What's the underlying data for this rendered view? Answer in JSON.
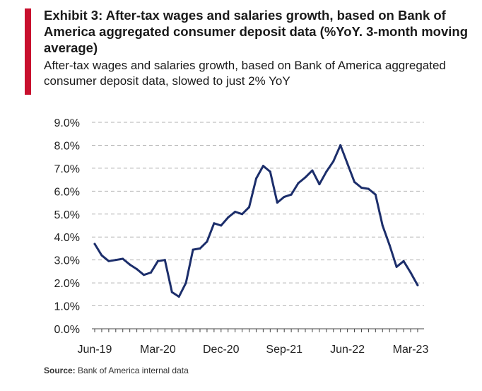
{
  "header": {
    "title": "Exhibit 3: After-tax wages and salaries growth, based on Bank of America aggregated consumer deposit data (%YoY. 3-month moving average)",
    "subtitle": "After-tax wages and salaries growth, based on Bank of America aggregated consumer deposit data, slowed to just 2% YoY"
  },
  "source": {
    "label": "Source:",
    "text": "Bank of America internal data"
  },
  "colors": {
    "accent": "#c8102e",
    "line": "#1c2e6b",
    "grid": "#b3b3b3"
  },
  "chart_data": {
    "type": "line",
    "title": "",
    "xlabel": "",
    "ylabel": "",
    "ylim": [
      0,
      9
    ],
    "grid": "horizontal-dashed",
    "legend": "none",
    "y_ticks": [
      "0.0%",
      "1.0%",
      "2.0%",
      "3.0%",
      "4.0%",
      "5.0%",
      "6.0%",
      "7.0%",
      "8.0%",
      "9.0%"
    ],
    "x_ticks": [
      {
        "label": "Jun-19",
        "x": "2019-06"
      },
      {
        "label": "Mar-20",
        "x": "2020-03"
      },
      {
        "label": "Dec-20",
        "x": "2020-12"
      },
      {
        "label": "Sep-21",
        "x": "2021-09"
      },
      {
        "label": "Jun-22",
        "x": "2022-06"
      },
      {
        "label": "Mar-23",
        "x": "2023-03"
      }
    ],
    "series": [
      {
        "x": [
          "2019-06",
          "2019-07",
          "2019-08",
          "2019-09",
          "2019-10",
          "2019-11",
          "2019-12",
          "2020-01",
          "2020-02",
          "2020-03",
          "2020-04",
          "2020-05",
          "2020-06",
          "2020-07",
          "2020-08",
          "2020-09",
          "2020-10",
          "2020-11",
          "2020-12",
          "2021-01",
          "2021-02",
          "2021-03",
          "2021-04",
          "2021-05",
          "2021-06",
          "2021-07",
          "2021-08",
          "2021-09",
          "2021-10",
          "2021-11",
          "2021-12",
          "2022-01",
          "2022-02",
          "2022-03",
          "2022-04",
          "2022-05",
          "2022-06",
          "2022-07",
          "2022-08",
          "2022-09",
          "2022-10",
          "2022-11",
          "2022-12",
          "2023-01",
          "2023-02",
          "2023-03",
          "2023-04"
        ],
        "values": [
          3.7,
          3.2,
          2.95,
          3.0,
          3.05,
          2.8,
          2.6,
          2.35,
          2.45,
          2.95,
          3.0,
          1.6,
          1.4,
          2.0,
          3.45,
          3.5,
          3.8,
          4.6,
          4.5,
          4.85,
          5.1,
          5.0,
          5.3,
          6.55,
          7.1,
          6.85,
          5.5,
          5.75,
          5.85,
          6.35,
          6.6,
          6.9,
          6.3,
          6.85,
          7.3,
          8.0,
          7.2,
          6.4,
          6.15,
          6.1,
          5.85,
          4.5,
          3.65,
          2.7,
          2.95,
          2.45,
          1.9
        ]
      }
    ]
  }
}
